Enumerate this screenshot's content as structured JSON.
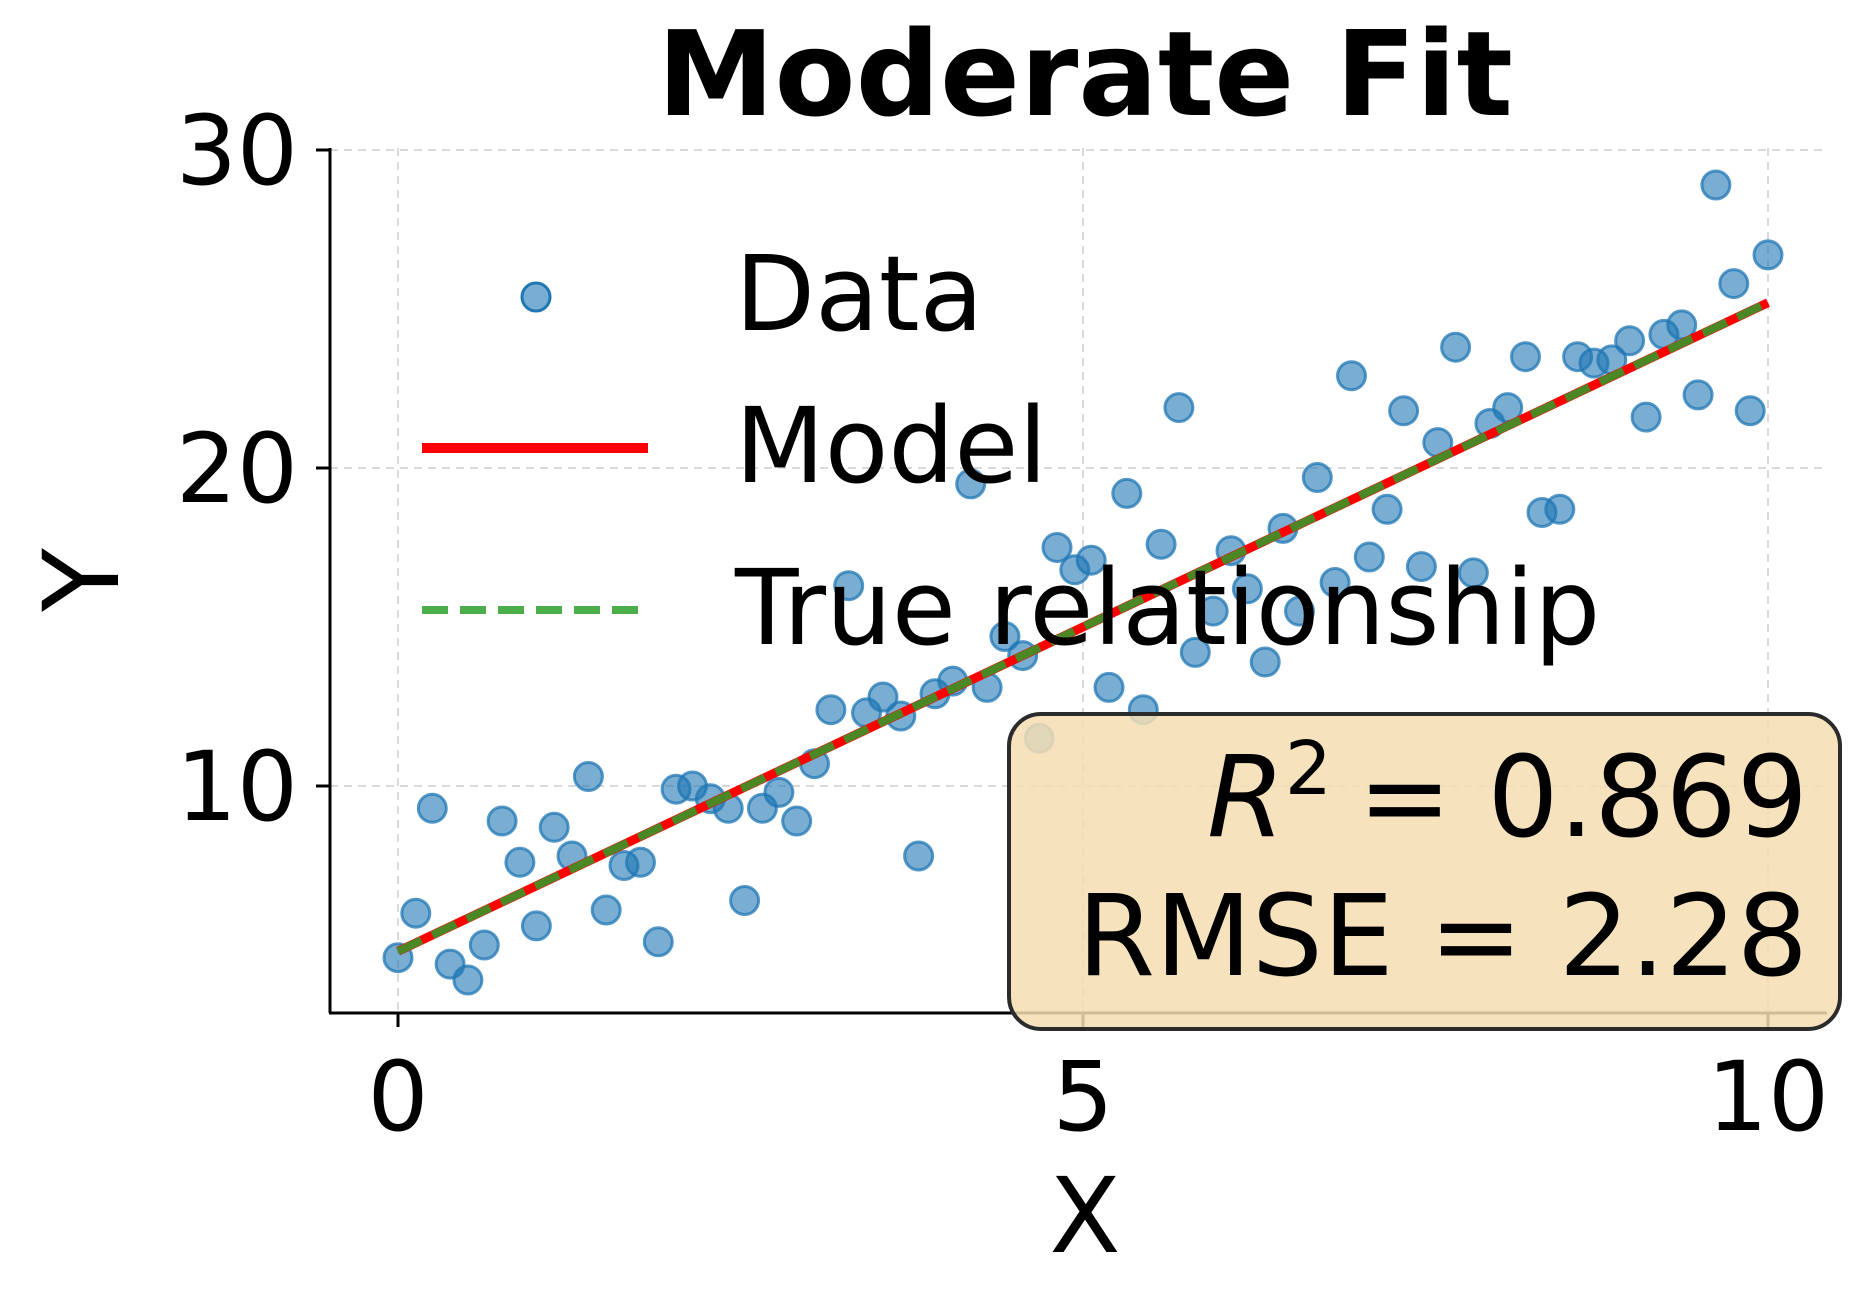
{
  "colors": {
    "data": "#1f77b4",
    "model": "#ff0000",
    "truth": "#2ca02c",
    "stats_box_fill": "#f5deb3",
    "stats_box_stroke": "#2b2b2b"
  },
  "chart_data": {
    "type": "scatter",
    "title": "Moderate Fit",
    "xlabel": "X",
    "ylabel": "Y",
    "xlim": [
      -1,
      10.5
    ],
    "ylim": [
      2.8,
      30.1
    ],
    "xticks": [
      0,
      5,
      10
    ],
    "yticks": [
      10,
      20,
      30
    ],
    "grid": true,
    "legend": {
      "placement": "upper-left",
      "entries": [
        {
          "key": "data",
          "label": "Data",
          "marker": "circle"
        },
        {
          "key": "model",
          "label": "Model",
          "marker": "solid-line"
        },
        {
          "key": "truth",
          "label": "True relationship",
          "marker": "dashed-line"
        }
      ]
    },
    "stats": {
      "r2_label": "R",
      "r2_sup": "2",
      "r2_value": "= 0.869",
      "rmse_text": "RMSE = 2.28",
      "placement": "lower-right"
    },
    "series": [
      {
        "name": "Data",
        "kind": "scatter",
        "points": [
          [
            0.0,
            4.6
          ],
          [
            0.13,
            6.0
          ],
          [
            0.25,
            9.3
          ],
          [
            0.38,
            4.4
          ],
          [
            0.51,
            3.9
          ],
          [
            0.63,
            5.0
          ],
          [
            0.76,
            8.9
          ],
          [
            0.89,
            7.6
          ],
          [
            1.01,
            5.6
          ],
          [
            1.14,
            8.7
          ],
          [
            1.27,
            7.8
          ],
          [
            1.39,
            10.3
          ],
          [
            1.52,
            6.1
          ],
          [
            1.65,
            7.5
          ],
          [
            1.77,
            7.6
          ],
          [
            1.9,
            5.1
          ],
          [
            2.03,
            9.9
          ],
          [
            2.15,
            10.0
          ],
          [
            2.28,
            9.6
          ],
          [
            2.41,
            9.3
          ],
          [
            2.53,
            6.4
          ],
          [
            2.66,
            9.3
          ],
          [
            2.78,
            9.8
          ],
          [
            2.91,
            8.9
          ],
          [
            3.04,
            10.7
          ],
          [
            3.16,
            12.4
          ],
          [
            3.29,
            16.3
          ],
          [
            3.42,
            12.3
          ],
          [
            3.54,
            12.8
          ],
          [
            3.67,
            12.2
          ],
          [
            3.8,
            7.8
          ],
          [
            3.92,
            12.9
          ],
          [
            4.05,
            13.3
          ],
          [
            4.18,
            19.5
          ],
          [
            4.3,
            13.1
          ],
          [
            4.43,
            14.7
          ],
          [
            4.56,
            14.1
          ],
          [
            4.68,
            11.5
          ],
          [
            4.81,
            17.5
          ],
          [
            4.94,
            16.8
          ],
          [
            5.06,
            17.1
          ],
          [
            5.19,
            13.1
          ],
          [
            5.32,
            19.2
          ],
          [
            5.44,
            12.4
          ],
          [
            5.57,
            17.6
          ],
          [
            5.7,
            21.9
          ],
          [
            5.82,
            14.2
          ],
          [
            5.95,
            15.5
          ],
          [
            6.08,
            17.4
          ],
          [
            6.2,
            16.2
          ],
          [
            6.33,
            13.9
          ],
          [
            6.46,
            18.1
          ],
          [
            6.58,
            15.5
          ],
          [
            6.71,
            19.7
          ],
          [
            6.84,
            16.4
          ],
          [
            6.96,
            22.9
          ],
          [
            7.09,
            17.2
          ],
          [
            7.22,
            18.7
          ],
          [
            7.34,
            21.8
          ],
          [
            7.47,
            16.9
          ],
          [
            7.59,
            20.8
          ],
          [
            7.72,
            23.8
          ],
          [
            7.85,
            16.7
          ],
          [
            7.97,
            21.4
          ],
          [
            8.1,
            21.9
          ],
          [
            8.23,
            23.5
          ],
          [
            8.35,
            18.6
          ],
          [
            8.48,
            18.7
          ],
          [
            8.61,
            23.5
          ],
          [
            8.73,
            23.3
          ],
          [
            8.86,
            23.4
          ],
          [
            8.99,
            24.0
          ],
          [
            9.11,
            21.6
          ],
          [
            9.24,
            24.2
          ],
          [
            9.37,
            24.5
          ],
          [
            9.49,
            22.3
          ],
          [
            9.62,
            28.9
          ],
          [
            9.75,
            25.8
          ],
          [
            9.87,
            21.8
          ],
          [
            10.0,
            26.7
          ]
        ]
      },
      {
        "name": "Model",
        "kind": "line",
        "x": [
          0,
          10
        ],
        "y": [
          4.8,
          25.2
        ]
      },
      {
        "name": "True relationship",
        "kind": "line",
        "x": [
          0,
          10
        ],
        "y": [
          4.8,
          25.2
        ]
      }
    ]
  }
}
